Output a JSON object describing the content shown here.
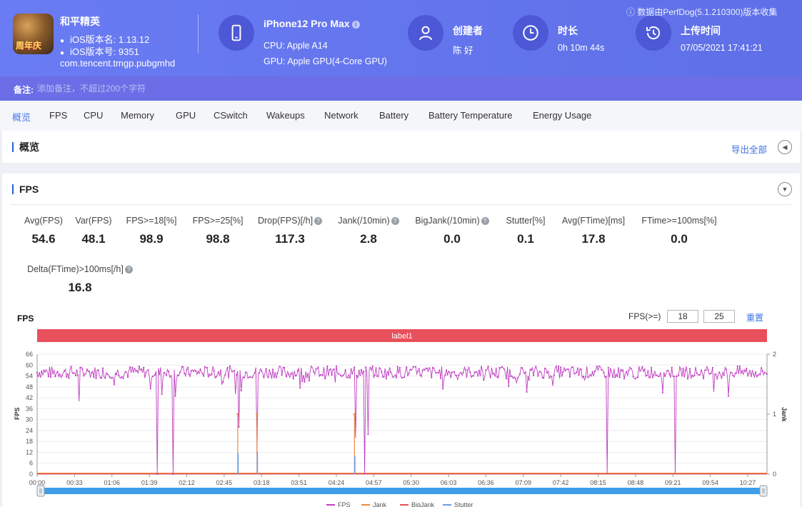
{
  "app": {
    "name": "和平精英",
    "version_name": "iOS版本名: 1.13.12",
    "version_code": "iOS版本号: 9351",
    "package": "com.tencent.tmgp.pubgmhd",
    "icon_text": "周年庆"
  },
  "device": {
    "model": "iPhone12 Pro Max",
    "cpu": "CPU: Apple A14",
    "gpu": "GPU: Apple GPU(4-Core GPU)"
  },
  "creator": {
    "label": "创建者",
    "value": "陈 好"
  },
  "duration": {
    "label": "时长",
    "value": "0h 10m 44s"
  },
  "upload": {
    "label": "上传时间",
    "value": "07/05/2021 17:41:21"
  },
  "source_note": "数据由PerfDog(5.1.210300)版本收集",
  "remark": {
    "label": "备注:",
    "placeholder": "添加备注，不超过200个字符"
  },
  "tabs": [
    "概览",
    "FPS",
    "CPU",
    "Memory",
    "GPU",
    "CSwitch",
    "Wakeups",
    "Network",
    "Battery",
    "Battery Temperature",
    "Energy Usage"
  ],
  "overview": {
    "title": "概览",
    "export_label": "导出全部"
  },
  "fps_section": {
    "title": "FPS",
    "metrics": [
      {
        "label": "Avg(FPS)",
        "value": "54.6",
        "help": false
      },
      {
        "label": "Var(FPS)",
        "value": "48.1",
        "help": false
      },
      {
        "label": "FPS>=18[%]",
        "value": "98.9",
        "help": false
      },
      {
        "label": "FPS>=25[%]",
        "value": "98.8",
        "help": false
      },
      {
        "label": "Drop(FPS)[/h]",
        "value": "117.3",
        "help": true
      },
      {
        "label": "Jank(/10min)",
        "value": "2.8",
        "help": true
      },
      {
        "label": "BigJank(/10min)",
        "value": "0.0",
        "help": true
      },
      {
        "label": "Stutter[%]",
        "value": "0.1",
        "help": false
      },
      {
        "label": "Avg(FTime)[ms]",
        "value": "17.8",
        "help": false
      },
      {
        "label": "FTime>=100ms[%]",
        "value": "0.0",
        "help": false
      },
      {
        "label": "Delta(FTime)>100ms[/h]",
        "value": "16.8",
        "help": true
      }
    ],
    "chart_title": "FPS",
    "threshold_label": "FPS(>=)",
    "threshold_low": "18",
    "threshold_high": "25",
    "reset_label": "重置"
  },
  "chart_data": {
    "type": "line",
    "band_label": "label1",
    "ylabel": "FPS",
    "y2label": "Jank",
    "ylim": [
      0,
      66
    ],
    "y_ticks": [
      0,
      6,
      12,
      18,
      24,
      30,
      36,
      42,
      48,
      54,
      60,
      66
    ],
    "y2lim": [
      0,
      2
    ],
    "y2_ticks": [
      0,
      1,
      2
    ],
    "x_ticks": [
      "00:00",
      "00:33",
      "01:06",
      "01:39",
      "02:12",
      "02:45",
      "03:18",
      "03:51",
      "04:24",
      "04:57",
      "05:30",
      "06:03",
      "06:36",
      "07:09",
      "07:42",
      "08:15",
      "08:48",
      "09:21",
      "09:54",
      "10:27"
    ],
    "duration_sec": 644,
    "fps_baseline": 56,
    "fps_dips": [
      {
        "t": 37,
        "fps": 40
      },
      {
        "t": 106,
        "fps": 0
      },
      {
        "t": 110,
        "fps": 44
      },
      {
        "t": 120,
        "fps": 0
      },
      {
        "t": 122,
        "fps": 43
      },
      {
        "t": 175,
        "fps": 44
      },
      {
        "t": 178,
        "fps": 26
      },
      {
        "t": 180,
        "fps": 46
      },
      {
        "t": 194,
        "fps": 12
      },
      {
        "t": 281,
        "fps": 20
      },
      {
        "t": 289,
        "fps": 0
      },
      {
        "t": 292,
        "fps": 22
      },
      {
        "t": 503,
        "fps": 0
      },
      {
        "t": 563,
        "fps": 0
      },
      {
        "t": 610,
        "fps": 43
      }
    ],
    "jank_events": [
      {
        "t": 177,
        "jank": 1
      },
      {
        "t": 194,
        "jank": 1
      },
      {
        "t": 280,
        "jank": 1
      }
    ],
    "stutter_events": [
      {
        "t": 177,
        "value": 0.35
      },
      {
        "t": 194,
        "value": 0.35
      },
      {
        "t": 280,
        "value": 0.3
      }
    ],
    "series": [
      {
        "name": "FPS",
        "color": "#c03fc2"
      },
      {
        "name": "Jank",
        "color": "#f08a3c"
      },
      {
        "name": "BigJank",
        "color": "#e84f55"
      },
      {
        "name": "Stutter",
        "color": "#6b9ae6"
      }
    ],
    "band_color": "#e8505b",
    "scrollbar_color": "#3d9de8"
  }
}
